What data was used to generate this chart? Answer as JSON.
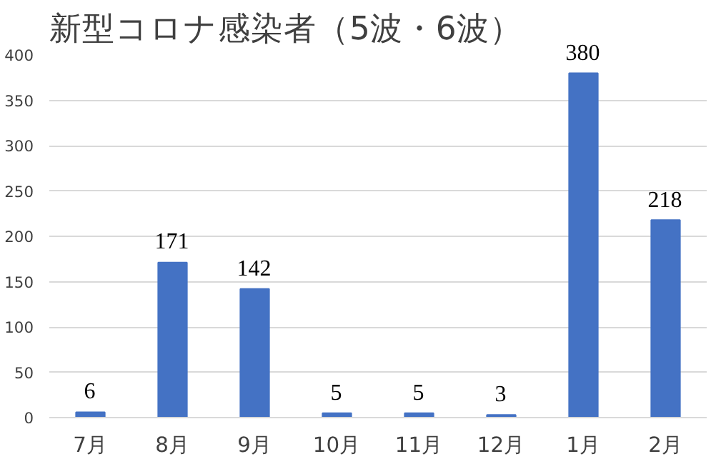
{
  "chart_data": {
    "type": "bar",
    "title": "新型コロナ感染者（5波・6波）",
    "categories": [
      "7月",
      "8月",
      "9月",
      "10月",
      "11月",
      "12月",
      "1月",
      "2月"
    ],
    "values": [
      6,
      171,
      142,
      5,
      5,
      3,
      380,
      218
    ],
    "color": "#4472c4",
    "ylim": [
      0,
      400
    ],
    "yticks": [
      0,
      50,
      100,
      150,
      200,
      250,
      300,
      350,
      400
    ],
    "grid": "y",
    "data_labels": true
  }
}
